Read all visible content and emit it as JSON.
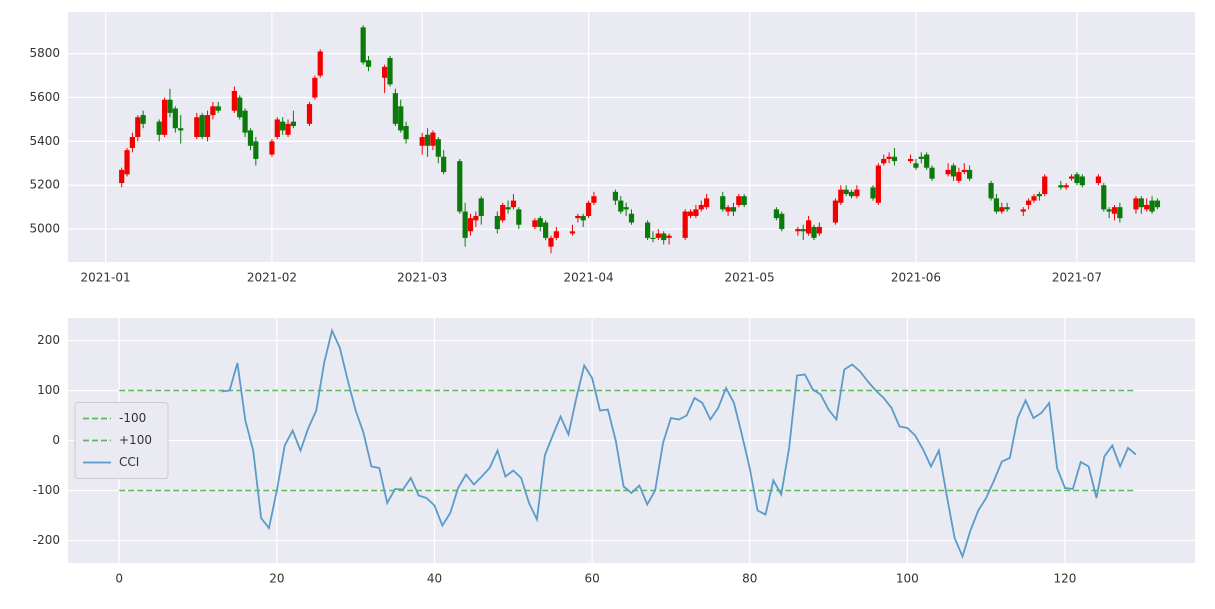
{
  "chart_data": [
    {
      "type": "candlestick",
      "x": [
        3,
        4,
        5,
        6,
        7,
        10,
        11,
        12,
        13,
        14,
        17,
        18,
        19,
        20,
        21,
        24,
        25,
        26,
        27,
        28,
        31,
        32,
        33,
        34,
        35,
        38,
        39,
        40,
        48,
        49,
        52,
        53,
        54,
        55,
        56,
        59,
        60,
        61,
        62,
        63,
        66,
        67,
        68,
        69,
        70,
        73,
        74,
        75,
        76,
        77,
        80,
        81,
        82,
        83,
        84,
        87,
        88,
        89,
        90,
        91,
        95,
        96,
        97,
        98,
        101,
        102,
        103,
        104,
        105,
        108,
        109,
        110,
        111,
        112,
        115,
        116,
        117,
        118,
        119,
        125,
        126,
        129,
        130,
        131,
        132,
        133,
        136,
        137,
        138,
        139,
        140,
        143,
        144,
        145,
        146,
        147,
        150,
        151,
        152,
        153,
        154,
        157,
        158,
        159,
        160,
        161,
        165,
        166,
        167,
        168,
        171,
        172,
        173,
        174,
        175,
        178,
        179,
        180,
        181,
        182,
        185,
        186,
        187,
        188,
        189,
        192,
        193,
        194,
        195,
        196
      ],
      "open": [
        5210,
        5250,
        5370,
        5420,
        5520,
        5490,
        5430,
        5590,
        5550,
        5460,
        5420,
        5520,
        5420,
        5520,
        5560,
        5540,
        5600,
        5540,
        5450,
        5400,
        5340,
        5420,
        5490,
        5430,
        5490,
        5480,
        5600,
        5700,
        5920,
        5770,
        5690,
        5780,
        5620,
        5560,
        5470,
        5380,
        5430,
        5380,
        5410,
        5330,
        5310,
        5080,
        4990,
        5040,
        5140,
        5060,
        5040,
        5100,
        5100,
        5090,
        5010,
        5050,
        5030,
        4920,
        4960,
        4980,
        5050,
        5060,
        5060,
        5120,
        5170,
        5130,
        5100,
        5070,
        5030,
        4960,
        4960,
        4980,
        4960,
        4960,
        5060,
        5060,
        5090,
        5100,
        5150,
        5080,
        5100,
        5110,
        5150,
        5090,
        5070,
        4990,
        5000,
        4980,
        5010,
        4980,
        5030,
        5120,
        5180,
        5170,
        5150,
        5190,
        5120,
        5300,
        5320,
        5330,
        5310,
        5300,
        5330,
        5340,
        5280,
        5250,
        5290,
        5220,
        5260,
        5270,
        5210,
        5140,
        5080,
        5100,
        5080,
        5110,
        5130,
        5160,
        5160,
        5200,
        5190,
        5230,
        5250,
        5240,
        5210,
        5200,
        5090,
        5070,
        5100,
        5090,
        5140,
        5090,
        5130,
        5130
      ],
      "high": [
        5280,
        5370,
        5440,
        5520,
        5540,
        5500,
        5600,
        5640,
        5560,
        5520,
        5530,
        5530,
        5540,
        5580,
        5580,
        5650,
        5610,
        5550,
        5460,
        5420,
        5410,
        5510,
        5510,
        5500,
        5540,
        5580,
        5700,
        5820,
        5930,
        5790,
        5750,
        5790,
        5640,
        5590,
        5490,
        5440,
        5460,
        5450,
        5420,
        5360,
        5320,
        5120,
        5070,
        5080,
        5150,
        5080,
        5120,
        5130,
        5160,
        5100,
        5050,
        5060,
        5040,
        4970,
        5010,
        5020,
        5070,
        5070,
        5130,
        5170,
        5180,
        5150,
        5120,
        5090,
        5040,
        4990,
        5000,
        4990,
        4980,
        5090,
        5090,
        5110,
        5130,
        5160,
        5170,
        5110,
        5120,
        5160,
        5160,
        5100,
        5080,
        5010,
        5020,
        5060,
        5020,
        5030,
        5140,
        5200,
        5200,
        5180,
        5200,
        5200,
        5300,
        5340,
        5350,
        5370,
        5340,
        5320,
        5350,
        5350,
        5290,
        5300,
        5300,
        5280,
        5300,
        5290,
        5220,
        5160,
        5120,
        5120,
        5100,
        5140,
        5160,
        5170,
        5250,
        5220,
        5210,
        5250,
        5260,
        5250,
        5250,
        5210,
        5100,
        5110,
        5120,
        5150,
        5150,
        5140,
        5150,
        5140
      ],
      "low": [
        5190,
        5240,
        5350,
        5400,
        5460,
        5400,
        5420,
        5510,
        5440,
        5390,
        5410,
        5410,
        5400,
        5500,
        5530,
        5530,
        5500,
        5420,
        5360,
        5290,
        5330,
        5410,
        5430,
        5420,
        5460,
        5470,
        5590,
        5690,
        5750,
        5720,
        5620,
        5650,
        5470,
        5440,
        5390,
        5340,
        5330,
        5360,
        5300,
        5250,
        5070,
        4920,
        4970,
        5010,
        5020,
        4980,
        5030,
        5070,
        5090,
        5000,
        5000,
        4990,
        4950,
        4890,
        4950,
        4970,
        5030,
        5010,
        5050,
        5110,
        5110,
        5070,
        5060,
        5020,
        4950,
        4940,
        4950,
        4930,
        4930,
        4950,
        5050,
        5050,
        5080,
        5090,
        5080,
        5060,
        5060,
        5100,
        5100,
        5040,
        4990,
        4970,
        4950,
        4970,
        4950,
        4970,
        5020,
        5110,
        5150,
        5140,
        5140,
        5130,
        5110,
        5290,
        5300,
        5290,
        5300,
        5270,
        5300,
        5270,
        5220,
        5240,
        5220,
        5210,
        5250,
        5220,
        5130,
        5070,
        5070,
        5080,
        5060,
        5090,
        5120,
        5130,
        5150,
        5180,
        5180,
        5220,
        5200,
        5190,
        5200,
        5080,
        5050,
        5040,
        5030,
        5070,
        5070,
        5080,
        5070,
        5090
      ],
      "close": [
        5270,
        5360,
        5420,
        5510,
        5480,
        5430,
        5590,
        5530,
        5460,
        5450,
        5510,
        5420,
        5520,
        5560,
        5540,
        5630,
        5510,
        5440,
        5380,
        5320,
        5400,
        5500,
        5450,
        5480,
        5470,
        5570,
        5690,
        5810,
        5760,
        5740,
        5740,
        5660,
        5480,
        5450,
        5410,
        5420,
        5380,
        5440,
        5330,
        5260,
        5080,
        4960,
        5050,
        5060,
        5060,
        5000,
        5110,
        5090,
        5130,
        5020,
        5040,
        5010,
        4960,
        4960,
        4990,
        4990,
        5060,
        5040,
        5120,
        5150,
        5130,
        5080,
        5090,
        5030,
        4960,
        4955,
        4980,
        4950,
        4970,
        5080,
        5080,
        5090,
        5110,
        5140,
        5090,
        5100,
        5080,
        5150,
        5110,
        5050,
        5000,
        5000,
        4990,
        5040,
        4960,
        5010,
        5130,
        5180,
        5160,
        5150,
        5180,
        5140,
        5290,
        5320,
        5330,
        5310,
        5320,
        5280,
        5320,
        5280,
        5230,
        5270,
        5240,
        5260,
        5270,
        5230,
        5140,
        5080,
        5100,
        5090,
        5090,
        5130,
        5150,
        5150,
        5240,
        5190,
        5200,
        5240,
        5210,
        5200,
        5240,
        5090,
        5080,
        5100,
        5050,
        5140,
        5100,
        5110,
        5080,
        5100
      ],
      "up_color": "#f20000",
      "down_color": "#0b7a0b",
      "xlim": [
        -7,
        203
      ],
      "xticks": [
        {
          "value": 0,
          "label": "2021-01"
        },
        {
          "value": 31,
          "label": "2021-02"
        },
        {
          "value": 59,
          "label": "2021-03"
        },
        {
          "value": 90,
          "label": "2021-04"
        },
        {
          "value": 120,
          "label": "2021-05"
        },
        {
          "value": 151,
          "label": "2021-06"
        },
        {
          "value": 181,
          "label": "2021-07"
        }
      ],
      "ylim": [
        4850,
        5990
      ],
      "yticks": [
        5000,
        5200,
        5400,
        5600,
        5800
      ],
      "grid": true
    },
    {
      "type": "line",
      "x": [
        0,
        1,
        2,
        3,
        4,
        5,
        6,
        7,
        8,
        9,
        10,
        11,
        12,
        13,
        14,
        15,
        16,
        17,
        18,
        19,
        20,
        21,
        22,
        23,
        24,
        25,
        26,
        27,
        28,
        29,
        30,
        31,
        32,
        33,
        34,
        35,
        36,
        37,
        38,
        39,
        40,
        41,
        42,
        43,
        44,
        45,
        46,
        47,
        48,
        49,
        50,
        51,
        52,
        53,
        54,
        55,
        56,
        57,
        58,
        59,
        60,
        61,
        62,
        63,
        64,
        65,
        66,
        67,
        68,
        69,
        70,
        71,
        72,
        73,
        74,
        75,
        76,
        77,
        78,
        79,
        80,
        81,
        82,
        83,
        84,
        85,
        86,
        87,
        88,
        89,
        90,
        91,
        92,
        93,
        94,
        95,
        96,
        97,
        98,
        99,
        100,
        101,
        102,
        103,
        104,
        105,
        106,
        107,
        108,
        109,
        110,
        111,
        112,
        113,
        114,
        115,
        116,
        117,
        118,
        119,
        120,
        121,
        122,
        123,
        124,
        125,
        126,
        127,
        128,
        129
      ],
      "series": [
        {
          "name": "-100",
          "color": "#5cb85c",
          "style": "dashed",
          "value": -100
        },
        {
          "name": "+100",
          "color": "#5cb85c",
          "style": "dashed",
          "value": 100
        },
        {
          "name": "CCI",
          "color": "#5b9bc8",
          "values": [
            null,
            null,
            null,
            null,
            null,
            null,
            null,
            null,
            null,
            null,
            null,
            null,
            null,
            98,
            100,
            155,
            40,
            -20,
            -155,
            -175,
            -100,
            -10,
            20,
            -20,
            25,
            60,
            155,
            220,
            185,
            120,
            60,
            15,
            -52,
            -55,
            -125,
            -97,
            -98,
            -75,
            -110,
            -115,
            -130,
            -170,
            -145,
            -95,
            -68,
            -88,
            -72,
            -55,
            -20,
            -72,
            -60,
            -75,
            -125,
            -158,
            -30,
            10,
            48,
            12,
            85,
            150,
            125,
            60,
            62,
            0,
            -92,
            -105,
            -90,
            -128,
            -100,
            -5,
            45,
            42,
            50,
            85,
            75,
            42,
            65,
            105,
            75,
            12,
            -55,
            -140,
            -148,
            -80,
            -108,
            -15,
            130,
            132,
            102,
            92,
            62,
            42,
            142,
            152,
            138,
            118,
            100,
            85,
            65,
            28,
            25,
            10,
            -18,
            -52,
            -20,
            -110,
            -195,
            -232,
            -180,
            -140,
            -115,
            -80,
            -42,
            -35,
            45,
            80,
            45,
            55,
            75,
            -55,
            -95,
            -97,
            -43,
            -52,
            -115,
            -32,
            -10,
            -52,
            -15,
            -28
          ]
        }
      ],
      "xlim": [
        -6.5,
        136.5
      ],
      "xticks": [
        0,
        20,
        40,
        60,
        80,
        100,
        120
      ],
      "ylim": [
        -245,
        245
      ],
      "yticks": [
        -200,
        -100,
        0,
        100,
        200
      ],
      "grid": true,
      "legend": "center left"
    }
  ]
}
